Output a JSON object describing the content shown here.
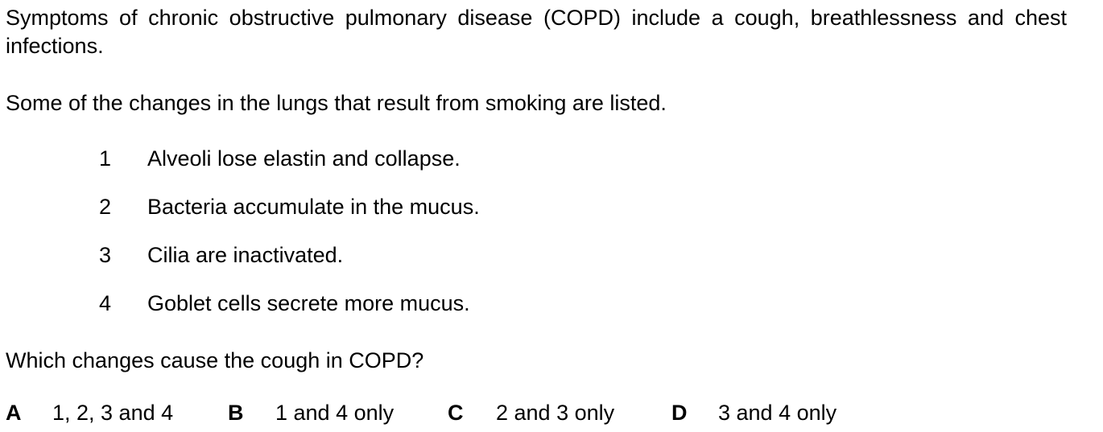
{
  "intro": {
    "text": "Symptoms of chronic obstructive pulmonary disease (COPD) include a cough, breathlessness and chest infections."
  },
  "lead": {
    "text": "Some of the changes in the lungs that result from smoking are listed."
  },
  "changes": [
    {
      "number": "1",
      "text": "Alveoli lose elastin and collapse."
    },
    {
      "number": "2",
      "text": "Bacteria accumulate in the mucus."
    },
    {
      "number": "3",
      "text": "Cilia are inactivated."
    },
    {
      "number": "4",
      "text": "Goblet cells secrete more mucus."
    }
  ],
  "question": {
    "text": "Which changes cause the cough in COPD?"
  },
  "options": [
    {
      "letter": "A",
      "text": "1, 2, 3 and 4"
    },
    {
      "letter": "B",
      "text": "1 and 4 only"
    },
    {
      "letter": "C",
      "text": "2 and 3 only"
    },
    {
      "letter": "D",
      "text": "3 and 4 only"
    }
  ]
}
